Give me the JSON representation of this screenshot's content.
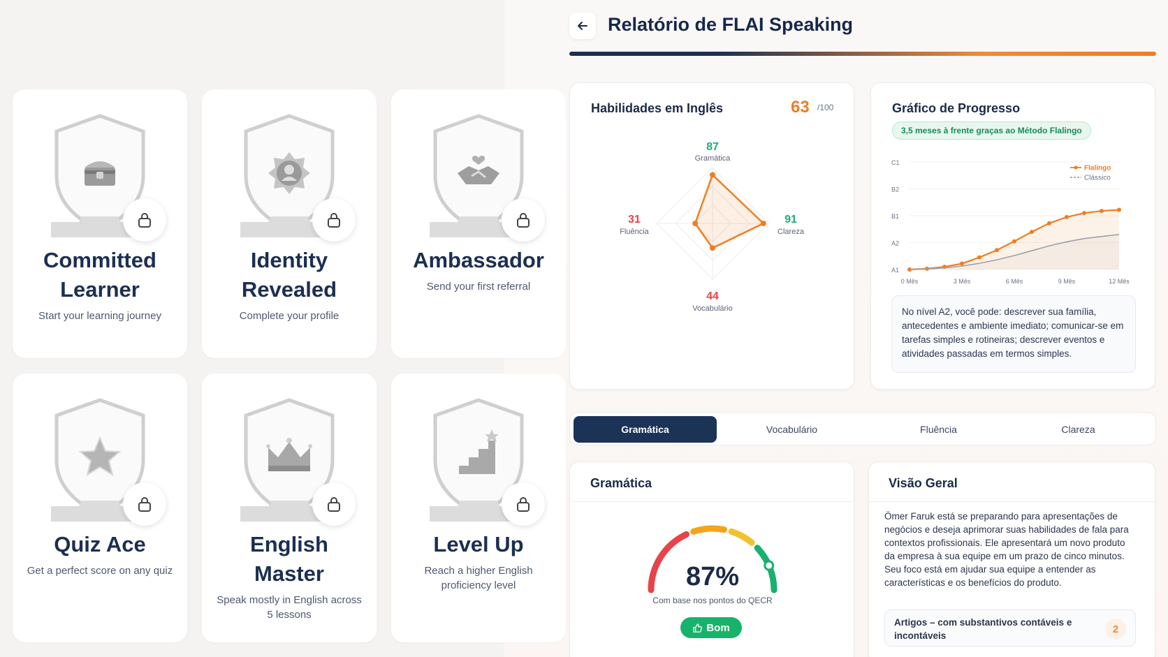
{
  "achievements": [
    {
      "title_line1": "Committed",
      "title_line2": "Learner",
      "desc_line1": "Start your learning journey",
      "desc_line2": "",
      "icon": "treasure-chest-icon"
    },
    {
      "title_line1": "Identity",
      "title_line2": "Revealed",
      "desc_line1": "Complete your profile",
      "desc_line2": "",
      "icon": "profile-medal-icon"
    },
    {
      "title_line1": "Ambassador",
      "title_line2": "",
      "desc_line1": "Send your first referral",
      "desc_line2": "",
      "icon": "handshake-icon"
    },
    {
      "title_line1": "Quiz Ace",
      "title_line2": "",
      "desc_line1": "Get a perfect score on any quiz",
      "desc_line2": "",
      "icon": "star-icon"
    },
    {
      "title_line1": "English Master",
      "title_line2": "",
      "desc_line1": "Speak mostly in English across",
      "desc_line2": "5 lessons",
      "icon": "crown-icon"
    },
    {
      "title_line1": "Level Up",
      "title_line2": "",
      "desc_line1": "Reach a higher English",
      "desc_line2": "proficiency level",
      "icon": "stairs-icon"
    }
  ],
  "header": {
    "title": "Relatório de FLAI Speaking"
  },
  "skills": {
    "title": "Habilidades em Inglês",
    "score": "63",
    "score_max": "/100",
    "items": [
      {
        "name": "Gramática",
        "value": 87
      },
      {
        "name": "Clareza",
        "value": 91
      },
      {
        "name": "Vocabulário",
        "value": 44
      },
      {
        "name": "Fluência",
        "value": 31
      }
    ]
  },
  "progress": {
    "title": "Gráfico de Progresso",
    "pill": "3,5 meses à frente graças ao Método Flalingo",
    "note": "No nível A2, você pode: descrever sua família, antecedentes e ambiente imediato; comunicar-se em tarefas simples e rotineiras; descrever eventos e atividades passadas em termos simples."
  },
  "chart_data": {
    "type": "line",
    "x": [
      0,
      1,
      2,
      3,
      4,
      5,
      6,
      7,
      8,
      9,
      10,
      11,
      12
    ],
    "x_tick_labels": [
      "0 Mês",
      "3 Mês",
      "6 Mês",
      "9 Mês",
      "12 Mês"
    ],
    "x_tick_positions": [
      0,
      3,
      6,
      9,
      12
    ],
    "y_tick_labels": [
      "A1",
      "A2",
      "B1",
      "B2",
      "C1"
    ],
    "ylim": [
      0,
      4
    ],
    "series": [
      {
        "name": "Flalingo",
        "values": [
          0.0,
          0.03,
          0.1,
          0.22,
          0.45,
          0.72,
          1.05,
          1.4,
          1.72,
          1.95,
          2.1,
          2.18,
          2.22
        ],
        "color": "#f07d22"
      },
      {
        "name": "Clássico",
        "values": [
          0.0,
          0.02,
          0.06,
          0.13,
          0.23,
          0.36,
          0.52,
          0.7,
          0.88,
          1.03,
          1.15,
          1.23,
          1.3
        ],
        "color": "#9aa0aa"
      }
    ],
    "legend": "top-right"
  },
  "tabs": [
    {
      "label": "Gramática",
      "active": true
    },
    {
      "label": "Vocabulário",
      "active": false
    },
    {
      "label": "Fluência",
      "active": false
    },
    {
      "label": "Clareza",
      "active": false
    }
  ],
  "grammar": {
    "title": "Gramática",
    "percent": 87,
    "percent_label": "87%",
    "subtitle": "Com base nos pontos do QECR",
    "rating": "Bom"
  },
  "overview": {
    "title": "Visão Geral",
    "text": "Ömer Faruk está se preparando para apresentações de negócios e deseja aprimorar suas habilidades de fala para contextos profissionais. Ele apresentará um novo produto da empresa à sua equipe em um prazo de cinco minutos. Seu foco está em ajudar sua equipe a entender as características e os benefícios do produto.",
    "topic_label": "Artigos – com substantivos contáveis e incontáveis",
    "topic_count": "2"
  },
  "colors": {
    "navy": "#1c3358",
    "orange": "#f07d22",
    "green": "#18b36a",
    "red": "#e8434a"
  }
}
